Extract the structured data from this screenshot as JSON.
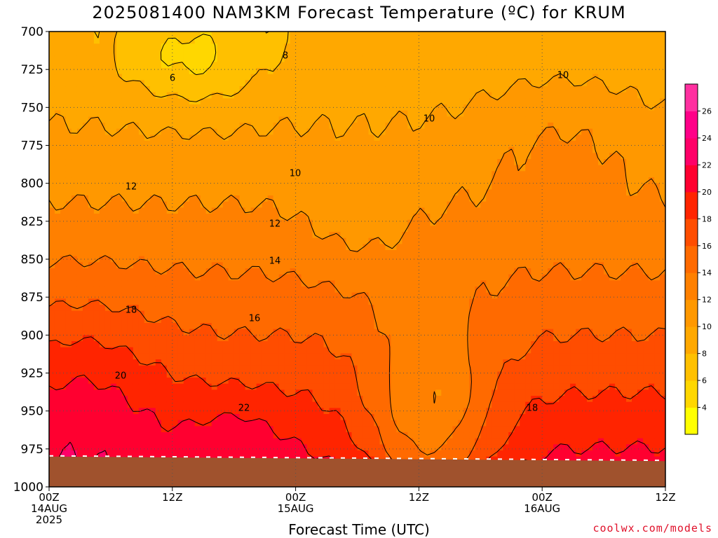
{
  "chart_data": {
    "type": "heatmap",
    "title": "2025081400 NAM3KM Forecast Temperature (ºC) for KRUM",
    "xlabel": "Forecast Time (UTC)",
    "ylabel": "",
    "credit": "coolwx.com/models",
    "y_axis": {
      "ticks": [
        700,
        725,
        750,
        775,
        800,
        825,
        850,
        875,
        900,
        925,
        950,
        975,
        1000
      ],
      "ylim": [
        700,
        1000
      ]
    },
    "x_axis": {
      "ticks": [
        {
          "hour": 0,
          "line1": "00Z",
          "line2": "14AUG",
          "line3": "2025"
        },
        {
          "hour": 12,
          "line1": "12Z",
          "line2": "",
          "line3": ""
        },
        {
          "hour": 24,
          "line1": "00Z",
          "line2": "15AUG",
          "line3": ""
        },
        {
          "hour": 36,
          "line1": "12Z",
          "line2": "",
          "line3": ""
        },
        {
          "hour": 48,
          "line1": "00Z",
          "line2": "16AUG",
          "line3": ""
        },
        {
          "hour": 60,
          "line1": "12Z",
          "line2": "",
          "line3": ""
        }
      ],
      "xlim": [
        0,
        60
      ]
    },
    "colorbar": {
      "levels": [
        2,
        4,
        6,
        8,
        10,
        12,
        14,
        16,
        18,
        20,
        22,
        24,
        26,
        28
      ],
      "labels": [
        "4",
        "6",
        "8",
        "10",
        "12",
        "14",
        "16",
        "18",
        "20",
        "22",
        "24",
        "26"
      ],
      "colors": [
        "#ffff00",
        "#ffd700",
        "#ffc000",
        "#ffa800",
        "#ff9800",
        "#ff8000",
        "#ff6a00",
        "#ff4d00",
        "#ff2400",
        "#ff0030",
        "#ff0068",
        "#ff0088",
        "#ff30a0"
      ]
    },
    "contour_labels": [
      {
        "text": "6",
        "hour": 0,
        "pressure": 0
      },
      {
        "text": "8",
        "hour": 0,
        "pressure": 0
      },
      {
        "text": "10",
        "hour": 0,
        "pressure": 0
      },
      {
        "text": "10",
        "hour": 0,
        "pressure": 0
      },
      {
        "text": "10",
        "hour": 0,
        "pressure": 0
      },
      {
        "text": "12",
        "hour": 0,
        "pressure": 0
      },
      {
        "text": "12",
        "hour": 0,
        "pressure": 0
      },
      {
        "text": "14",
        "hour": 0,
        "pressure": 0
      },
      {
        "text": "16",
        "hour": 0,
        "pressure": 0
      },
      {
        "text": "18",
        "hour": 0,
        "pressure": 0
      },
      {
        "text": "18",
        "hour": 0,
        "pressure": 0
      },
      {
        "text": "20",
        "hour": 0,
        "pressure": 0
      },
      {
        "text": "22",
        "hour": 0,
        "pressure": 0
      }
    ],
    "grid": true,
    "legend": "right colorbar"
  }
}
